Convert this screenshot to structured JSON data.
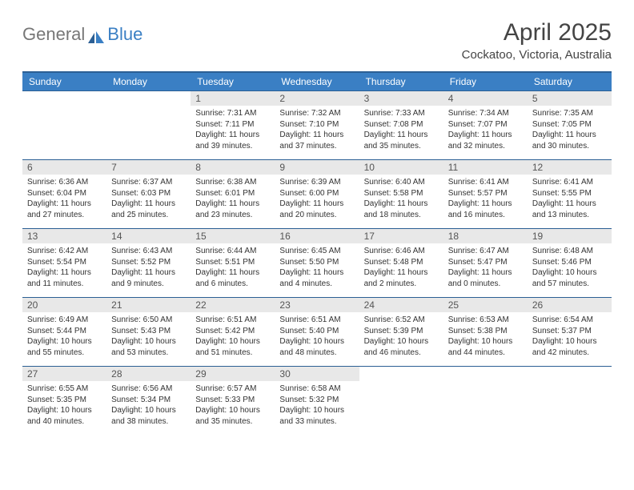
{
  "brand": {
    "part1": "General",
    "part2": "Blue"
  },
  "title": "April 2025",
  "location": "Cockatoo, Victoria, Australia",
  "colors": {
    "header_bg": "#3a7fc4",
    "header_border": "#2b5f94",
    "daynum_bg": "#e8e8e8",
    "text": "#333333",
    "title_text": "#444444"
  },
  "weekdays": [
    "Sunday",
    "Monday",
    "Tuesday",
    "Wednesday",
    "Thursday",
    "Friday",
    "Saturday"
  ],
  "weeks": [
    [
      null,
      null,
      {
        "day": "1",
        "sunrise": "Sunrise: 7:31 AM",
        "sunset": "Sunset: 7:11 PM",
        "daylight1": "Daylight: 11 hours",
        "daylight2": "and 39 minutes."
      },
      {
        "day": "2",
        "sunrise": "Sunrise: 7:32 AM",
        "sunset": "Sunset: 7:10 PM",
        "daylight1": "Daylight: 11 hours",
        "daylight2": "and 37 minutes."
      },
      {
        "day": "3",
        "sunrise": "Sunrise: 7:33 AM",
        "sunset": "Sunset: 7:08 PM",
        "daylight1": "Daylight: 11 hours",
        "daylight2": "and 35 minutes."
      },
      {
        "day": "4",
        "sunrise": "Sunrise: 7:34 AM",
        "sunset": "Sunset: 7:07 PM",
        "daylight1": "Daylight: 11 hours",
        "daylight2": "and 32 minutes."
      },
      {
        "day": "5",
        "sunrise": "Sunrise: 7:35 AM",
        "sunset": "Sunset: 7:05 PM",
        "daylight1": "Daylight: 11 hours",
        "daylight2": "and 30 minutes."
      }
    ],
    [
      {
        "day": "6",
        "sunrise": "Sunrise: 6:36 AM",
        "sunset": "Sunset: 6:04 PM",
        "daylight1": "Daylight: 11 hours",
        "daylight2": "and 27 minutes."
      },
      {
        "day": "7",
        "sunrise": "Sunrise: 6:37 AM",
        "sunset": "Sunset: 6:03 PM",
        "daylight1": "Daylight: 11 hours",
        "daylight2": "and 25 minutes."
      },
      {
        "day": "8",
        "sunrise": "Sunrise: 6:38 AM",
        "sunset": "Sunset: 6:01 PM",
        "daylight1": "Daylight: 11 hours",
        "daylight2": "and 23 minutes."
      },
      {
        "day": "9",
        "sunrise": "Sunrise: 6:39 AM",
        "sunset": "Sunset: 6:00 PM",
        "daylight1": "Daylight: 11 hours",
        "daylight2": "and 20 minutes."
      },
      {
        "day": "10",
        "sunrise": "Sunrise: 6:40 AM",
        "sunset": "Sunset: 5:58 PM",
        "daylight1": "Daylight: 11 hours",
        "daylight2": "and 18 minutes."
      },
      {
        "day": "11",
        "sunrise": "Sunrise: 6:41 AM",
        "sunset": "Sunset: 5:57 PM",
        "daylight1": "Daylight: 11 hours",
        "daylight2": "and 16 minutes."
      },
      {
        "day": "12",
        "sunrise": "Sunrise: 6:41 AM",
        "sunset": "Sunset: 5:55 PM",
        "daylight1": "Daylight: 11 hours",
        "daylight2": "and 13 minutes."
      }
    ],
    [
      {
        "day": "13",
        "sunrise": "Sunrise: 6:42 AM",
        "sunset": "Sunset: 5:54 PM",
        "daylight1": "Daylight: 11 hours",
        "daylight2": "and 11 minutes."
      },
      {
        "day": "14",
        "sunrise": "Sunrise: 6:43 AM",
        "sunset": "Sunset: 5:52 PM",
        "daylight1": "Daylight: 11 hours",
        "daylight2": "and 9 minutes."
      },
      {
        "day": "15",
        "sunrise": "Sunrise: 6:44 AM",
        "sunset": "Sunset: 5:51 PM",
        "daylight1": "Daylight: 11 hours",
        "daylight2": "and 6 minutes."
      },
      {
        "day": "16",
        "sunrise": "Sunrise: 6:45 AM",
        "sunset": "Sunset: 5:50 PM",
        "daylight1": "Daylight: 11 hours",
        "daylight2": "and 4 minutes."
      },
      {
        "day": "17",
        "sunrise": "Sunrise: 6:46 AM",
        "sunset": "Sunset: 5:48 PM",
        "daylight1": "Daylight: 11 hours",
        "daylight2": "and 2 minutes."
      },
      {
        "day": "18",
        "sunrise": "Sunrise: 6:47 AM",
        "sunset": "Sunset: 5:47 PM",
        "daylight1": "Daylight: 11 hours",
        "daylight2": "and 0 minutes."
      },
      {
        "day": "19",
        "sunrise": "Sunrise: 6:48 AM",
        "sunset": "Sunset: 5:46 PM",
        "daylight1": "Daylight: 10 hours",
        "daylight2": "and 57 minutes."
      }
    ],
    [
      {
        "day": "20",
        "sunrise": "Sunrise: 6:49 AM",
        "sunset": "Sunset: 5:44 PM",
        "daylight1": "Daylight: 10 hours",
        "daylight2": "and 55 minutes."
      },
      {
        "day": "21",
        "sunrise": "Sunrise: 6:50 AM",
        "sunset": "Sunset: 5:43 PM",
        "daylight1": "Daylight: 10 hours",
        "daylight2": "and 53 minutes."
      },
      {
        "day": "22",
        "sunrise": "Sunrise: 6:51 AM",
        "sunset": "Sunset: 5:42 PM",
        "daylight1": "Daylight: 10 hours",
        "daylight2": "and 51 minutes."
      },
      {
        "day": "23",
        "sunrise": "Sunrise: 6:51 AM",
        "sunset": "Sunset: 5:40 PM",
        "daylight1": "Daylight: 10 hours",
        "daylight2": "and 48 minutes."
      },
      {
        "day": "24",
        "sunrise": "Sunrise: 6:52 AM",
        "sunset": "Sunset: 5:39 PM",
        "daylight1": "Daylight: 10 hours",
        "daylight2": "and 46 minutes."
      },
      {
        "day": "25",
        "sunrise": "Sunrise: 6:53 AM",
        "sunset": "Sunset: 5:38 PM",
        "daylight1": "Daylight: 10 hours",
        "daylight2": "and 44 minutes."
      },
      {
        "day": "26",
        "sunrise": "Sunrise: 6:54 AM",
        "sunset": "Sunset: 5:37 PM",
        "daylight1": "Daylight: 10 hours",
        "daylight2": "and 42 minutes."
      }
    ],
    [
      {
        "day": "27",
        "sunrise": "Sunrise: 6:55 AM",
        "sunset": "Sunset: 5:35 PM",
        "daylight1": "Daylight: 10 hours",
        "daylight2": "and 40 minutes."
      },
      {
        "day": "28",
        "sunrise": "Sunrise: 6:56 AM",
        "sunset": "Sunset: 5:34 PM",
        "daylight1": "Daylight: 10 hours",
        "daylight2": "and 38 minutes."
      },
      {
        "day": "29",
        "sunrise": "Sunrise: 6:57 AM",
        "sunset": "Sunset: 5:33 PM",
        "daylight1": "Daylight: 10 hours",
        "daylight2": "and 35 minutes."
      },
      {
        "day": "30",
        "sunrise": "Sunrise: 6:58 AM",
        "sunset": "Sunset: 5:32 PM",
        "daylight1": "Daylight: 10 hours",
        "daylight2": "and 33 minutes."
      },
      null,
      null,
      null
    ]
  ]
}
